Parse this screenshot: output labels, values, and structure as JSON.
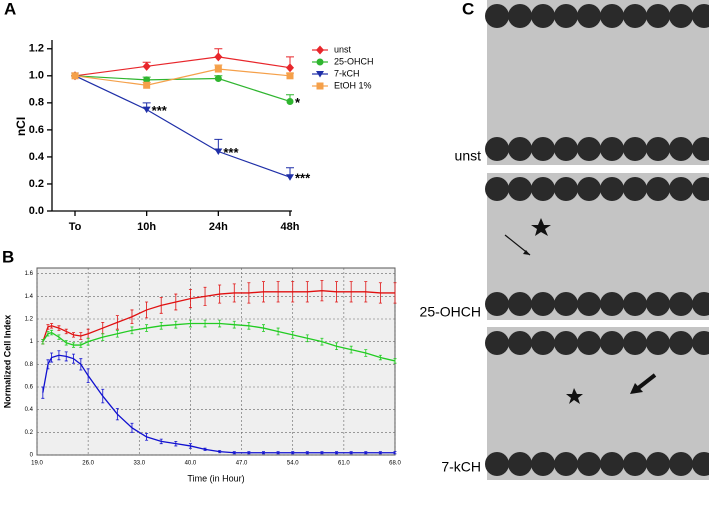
{
  "chart_data": [
    {
      "type": "line",
      "panel_label": "A",
      "ylabel": "nCI",
      "categories": [
        "To",
        "10h",
        "24h",
        "48h"
      ],
      "ylim": [
        0,
        1.25
      ],
      "yticks": [
        {
          "value": 0,
          "label": "0.0"
        },
        0.2,
        0.4,
        0.6,
        0.8,
        {
          "value": 1,
          "label": "1.0"
        },
        1.2
      ],
      "grid": false,
      "legend": "right",
      "series": [
        {
          "name": "unst",
          "color": "#e8262b",
          "marker": "diamond",
          "values": [
            1.0,
            1.07,
            1.14,
            1.06
          ],
          "errors": [
            0,
            0.03,
            0.06,
            0.08
          ]
        },
        {
          "name": "25-OHCH",
          "color": "#2fb52f",
          "marker": "circle",
          "values": [
            1.0,
            0.97,
            0.98,
            0.81
          ],
          "errors": [
            0,
            0.02,
            0.02,
            0.05
          ]
        },
        {
          "name": "7-kCH",
          "color": "#1f2fa8",
          "marker": "triangle",
          "values": [
            1.0,
            0.75,
            0.44,
            0.25
          ],
          "errors": [
            0,
            0.05,
            0.09,
            0.07
          ]
        },
        {
          "name": "EtOH 1%",
          "color": "#f5a04a",
          "marker": "square",
          "values": [
            1.0,
            0.93,
            1.05,
            1.0
          ],
          "errors": [
            0,
            0.02,
            0.03,
            0.02
          ]
        }
      ],
      "annotations": [
        {
          "text": "***",
          "x": "10h",
          "y": 0.75
        },
        {
          "text": "***",
          "x": "24h",
          "y": 0.44
        },
        {
          "text": "***",
          "x": "48h",
          "y": 0.25
        },
        {
          "text": "*",
          "x": "48h",
          "y": 0.81
        }
      ]
    },
    {
      "type": "line",
      "panel_label": "B",
      "xlabel": "Time (in Hour)",
      "ylabel": "Normalized Cell Index",
      "x": [
        19.8,
        20.5,
        21,
        22,
        23,
        24,
        25,
        26,
        28,
        30,
        32,
        34,
        36,
        38,
        40,
        42,
        44,
        46,
        48,
        50,
        52,
        54,
        56,
        58,
        60,
        62,
        64,
        66,
        68
      ],
      "xlim": [
        19,
        68
      ],
      "xticks": [
        {
          "value": 19,
          "label": "19.0"
        },
        {
          "value": 26,
          "label": "26.0"
        },
        {
          "value": 33,
          "label": "33.0"
        },
        {
          "value": 40,
          "label": "40.0"
        },
        {
          "value": 47,
          "label": "47.0"
        },
        {
          "value": 54,
          "label": "54.0"
        },
        {
          "value": 61,
          "label": "61.0"
        },
        {
          "value": 68,
          "label": "68.0"
        }
      ],
      "ylim": [
        0,
        1.65
      ],
      "yticks": [
        0,
        0.2,
        0.4,
        0.6,
        0.8,
        1,
        1.2,
        1.4,
        1.6
      ],
      "grid": true,
      "series": [
        {
          "name": "unst",
          "color": "#e01010",
          "values": [
            1.0,
            1.13,
            1.14,
            1.12,
            1.09,
            1.06,
            1.05,
            1.07,
            1.12,
            1.17,
            1.22,
            1.28,
            1.32,
            1.35,
            1.38,
            1.4,
            1.42,
            1.43,
            1.43,
            1.44,
            1.44,
            1.44,
            1.44,
            1.45,
            1.44,
            1.44,
            1.44,
            1.43,
            1.43
          ],
          "errors": [
            0.02,
            0.02,
            0.02,
            0.02,
            0.02,
            0.02,
            0.03,
            0.04,
            0.05,
            0.06,
            0.06,
            0.07,
            0.07,
            0.07,
            0.08,
            0.08,
            0.08,
            0.08,
            0.09,
            0.09,
            0.09,
            0.09,
            0.09,
            0.09,
            0.09,
            0.09,
            0.09,
            0.09,
            0.09
          ]
        },
        {
          "name": "25-OHCH",
          "color": "#22cc22",
          "values": [
            1.0,
            1.07,
            1.08,
            1.04,
            0.99,
            0.97,
            0.97,
            1.0,
            1.04,
            1.07,
            1.1,
            1.12,
            1.14,
            1.15,
            1.16,
            1.16,
            1.16,
            1.15,
            1.14,
            1.12,
            1.09,
            1.06,
            1.03,
            1.0,
            0.96,
            0.93,
            0.9,
            0.86,
            0.83
          ],
          "errors": [
            0.02,
            0.02,
            0.02,
            0.02,
            0.02,
            0.02,
            0.02,
            0.03,
            0.03,
            0.03,
            0.03,
            0.03,
            0.03,
            0.03,
            0.03,
            0.03,
            0.03,
            0.03,
            0.03,
            0.03,
            0.03,
            0.03,
            0.03,
            0.03,
            0.03,
            0.03,
            0.03,
            0.02,
            0.02
          ]
        },
        {
          "name": "7-kCH",
          "color": "#1010d0",
          "values": [
            0.55,
            0.8,
            0.86,
            0.88,
            0.87,
            0.85,
            0.8,
            0.7,
            0.52,
            0.36,
            0.24,
            0.16,
            0.12,
            0.1,
            0.08,
            0.05,
            0.03,
            0.02,
            0.02,
            0.02,
            0.02,
            0.02,
            0.02,
            0.02,
            0.02,
            0.02,
            0.02,
            0.02,
            0.02
          ],
          "errors": [
            0.05,
            0.04,
            0.04,
            0.04,
            0.04,
            0.04,
            0.05,
            0.06,
            0.06,
            0.05,
            0.04,
            0.03,
            0.02,
            0.02,
            0.02,
            0.01,
            0.01,
            0.01,
            0.01,
            0.01,
            0.01,
            0.01,
            0.01,
            0.01,
            0.01,
            0.01,
            0.01,
            0.01,
            0.01
          ]
        }
      ]
    }
  ],
  "images": {
    "panel_label": "C",
    "labels": [
      "unst",
      "25-OHCH",
      "7-kCH"
    ]
  }
}
